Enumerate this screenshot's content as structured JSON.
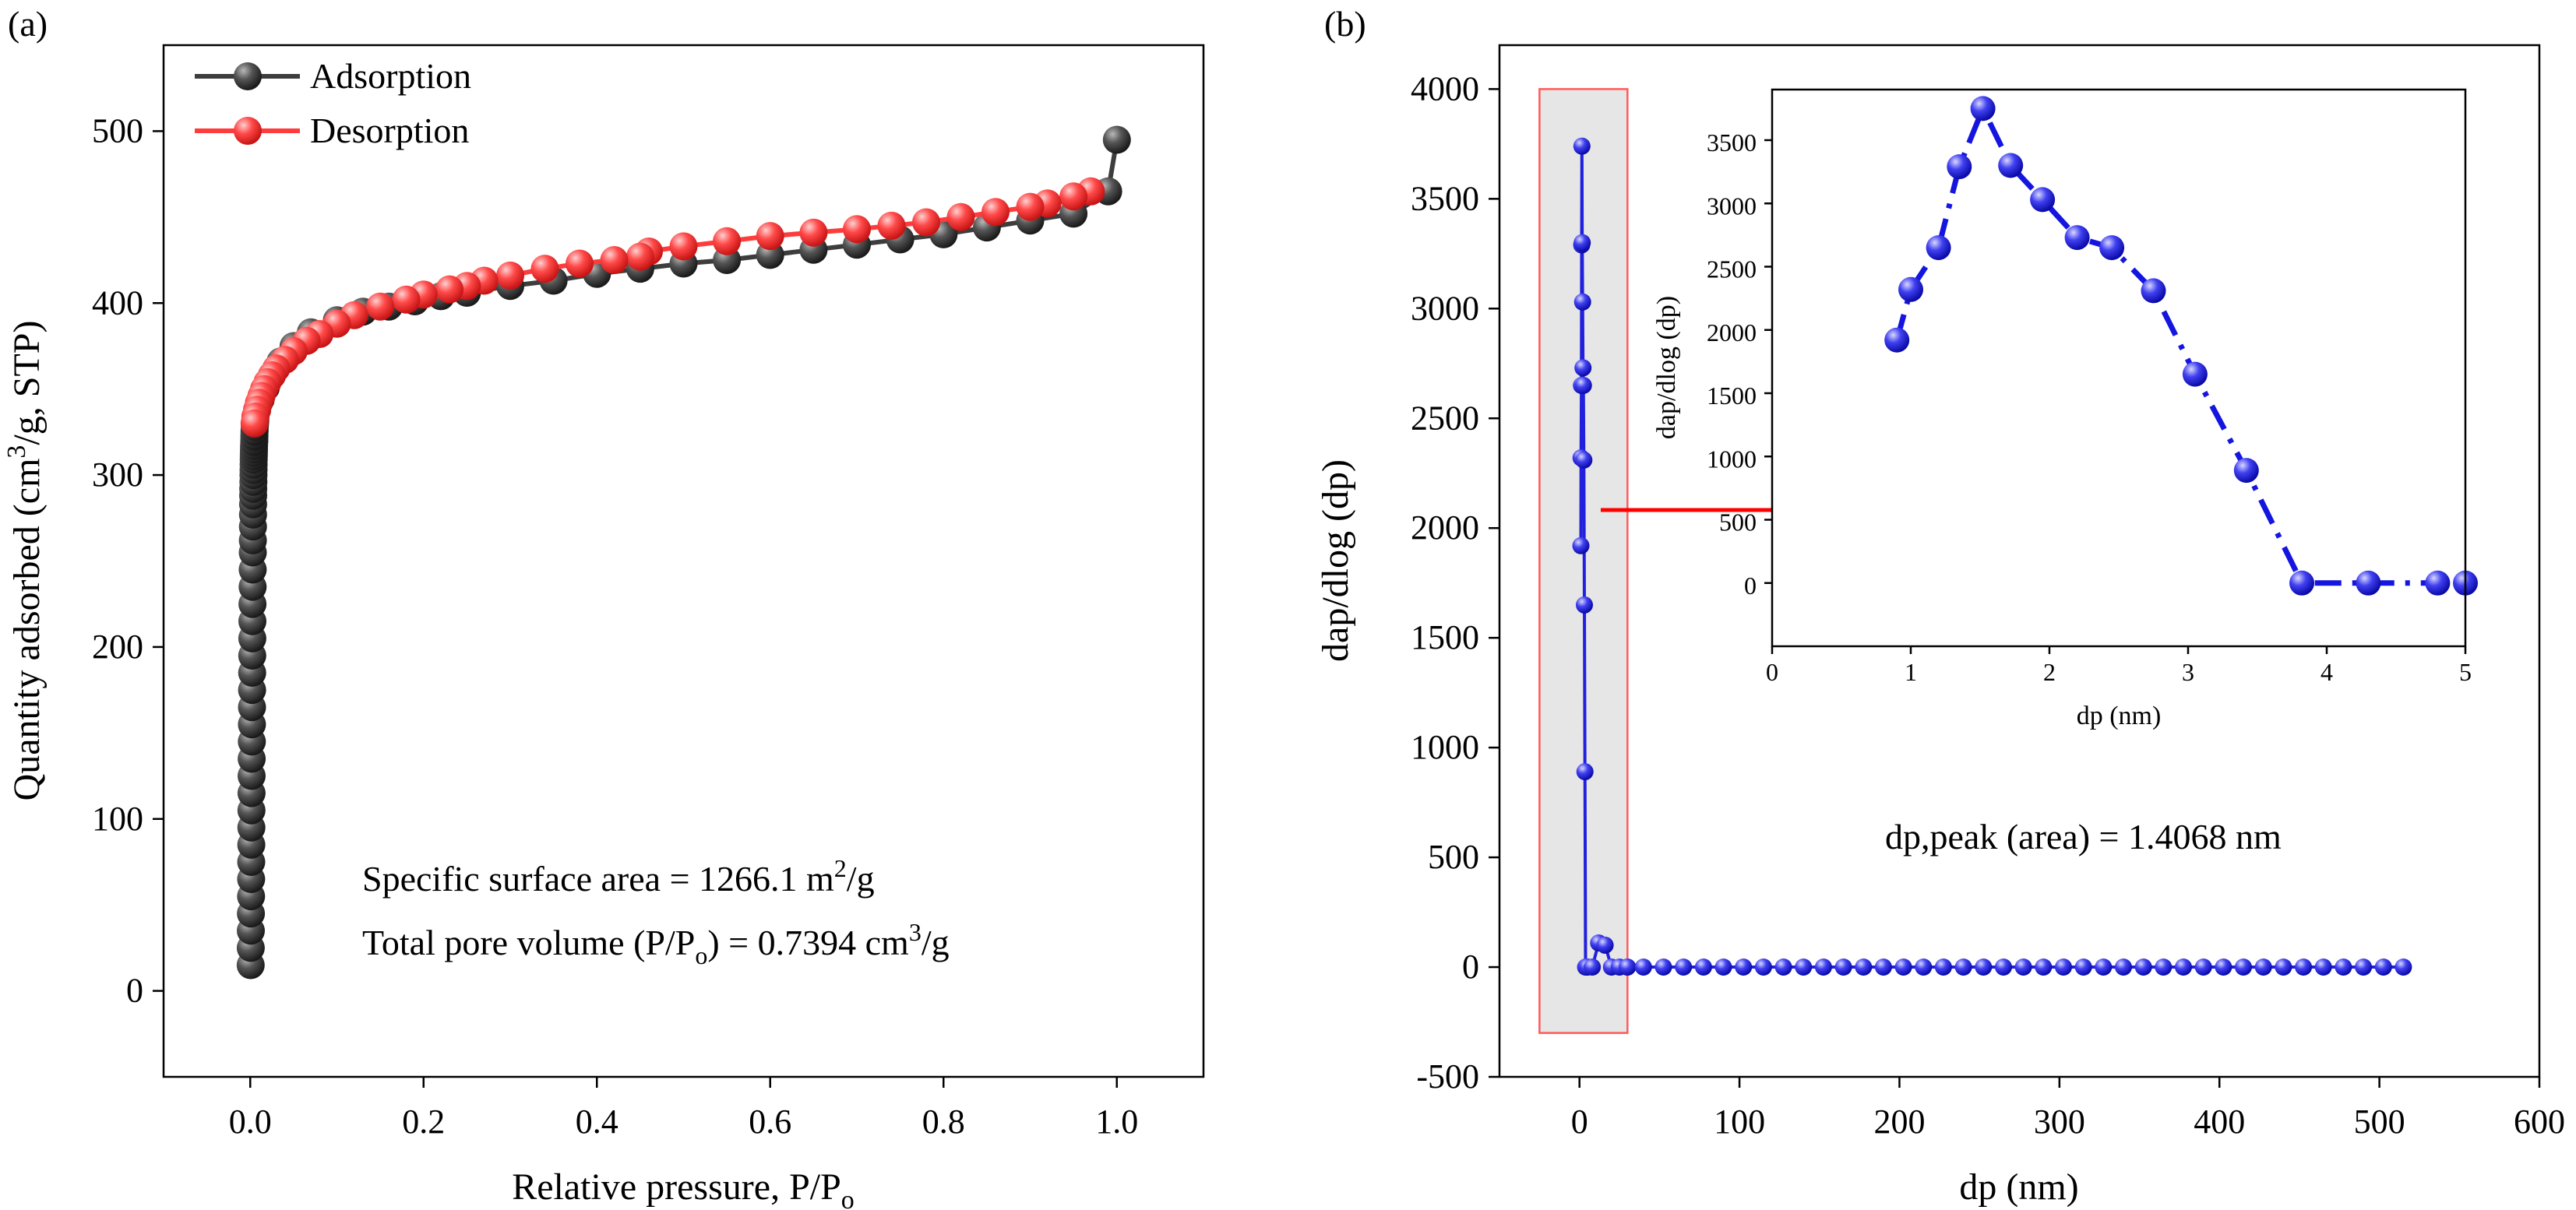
{
  "chart_data": [
    {
      "panel": "(a)",
      "type": "line",
      "xlabel": "Relative pressure, P/P",
      "xlabel_sub": "o",
      "ylabel_pre": "Quantity adsorbed (cm",
      "ylabel_sup": "3",
      "ylabel_post": "/g, STP)",
      "xlim": [
        -0.1,
        1.1
      ],
      "ylim": [
        -50,
        550
      ],
      "xticks": [
        0.0,
        0.2,
        0.4,
        0.6,
        0.8,
        1.0
      ],
      "xtick_labels": [
        "0.0",
        "0.2",
        "0.4",
        "0.6",
        "0.8",
        "1.0"
      ],
      "yticks": [
        0,
        100,
        200,
        300,
        400,
        500
      ],
      "ytick_labels": [
        "0",
        "100",
        "200",
        "300",
        "400",
        "500"
      ],
      "legend": {
        "position": "top-left",
        "entries": [
          "Adsorption",
          "Desorption"
        ]
      },
      "annotations": {
        "surface_pre": "Specific surface area = 1266.1 m",
        "surface_sup": "2",
        "surface_post": "/g",
        "volume_pre": "Total pore volume (P/P",
        "volume_sub": "o",
        "volume_mid": ") = 0.7394 cm",
        "volume_sup": "3",
        "volume_post": "/g"
      },
      "series": [
        {
          "name": "Adsorption",
          "color": "#3d3d3d",
          "x": [
            0.0005,
            0.0006,
            0.0007,
            0.0008,
            0.0009,
            0.001,
            0.0011,
            0.0012,
            0.0013,
            0.0014,
            0.0015,
            0.0016,
            0.0017,
            0.0018,
            0.0019,
            0.002,
            0.0021,
            0.0022,
            0.0023,
            0.0024,
            0.0025,
            0.0026,
            0.0027,
            0.0028,
            0.0029,
            0.003,
            0.0031,
            0.0032,
            0.0033,
            0.0034,
            0.0035,
            0.0036,
            0.0037,
            0.0038,
            0.0039,
            0.004,
            0.0041,
            0.0042,
            0.0043,
            0.0044,
            0.0045,
            0.0046,
            0.0047,
            0.0048,
            0.0049,
            0.005,
            0.0052,
            0.0055,
            0.0058,
            0.006,
            0.008,
            0.012,
            0.018,
            0.025,
            0.035,
            0.05,
            0.07,
            0.1,
            0.13,
            0.16,
            0.19,
            0.22,
            0.25,
            0.3,
            0.35,
            0.4,
            0.45,
            0.5,
            0.55,
            0.6,
            0.65,
            0.7,
            0.75,
            0.8,
            0.85,
            0.9,
            0.95,
            0.99,
            1.0
          ],
          "y": [
            15,
            25,
            35,
            45,
            55,
            65,
            75,
            85,
            95,
            105,
            115,
            125,
            135,
            145,
            155,
            165,
            175,
            185,
            195,
            205,
            215,
            225,
            235,
            245,
            255,
            262,
            270,
            277,
            283,
            288,
            292,
            296,
            300,
            303,
            306,
            309,
            311,
            313,
            315,
            317,
            319,
            320,
            322,
            323,
            325,
            326,
            328,
            330,
            332,
            334,
            338,
            344,
            351,
            358,
            366,
            375,
            383,
            390,
            395,
            398,
            401,
            404,
            406,
            410,
            413,
            417,
            420,
            423,
            425,
            428,
            431,
            434,
            437,
            440,
            444,
            448,
            452,
            465,
            495
          ]
        },
        {
          "name": "Desorption",
          "color": "#ff3b3b",
          "x": [
            0.97,
            0.95,
            0.92,
            0.9,
            0.86,
            0.82,
            0.78,
            0.74,
            0.7,
            0.65,
            0.6,
            0.55,
            0.5,
            0.46,
            0.45,
            0.42,
            0.38,
            0.34,
            0.3,
            0.27,
            0.25,
            0.23,
            0.2,
            0.18,
            0.15,
            0.12,
            0.1,
            0.08,
            0.065,
            0.05,
            0.04,
            0.03,
            0.025,
            0.02,
            0.016,
            0.013,
            0.01,
            0.008,
            0.006,
            0.005
          ],
          "y": [
            465,
            462,
            458,
            456,
            453,
            450,
            447,
            445,
            443,
            441,
            439,
            436,
            433,
            430,
            427,
            425,
            423,
            420,
            416,
            413,
            410,
            408,
            405,
            402,
            398,
            393,
            388,
            382,
            378,
            372,
            367,
            362,
            358,
            354,
            350,
            346,
            342,
            338,
            334,
            330
          ]
        }
      ]
    },
    {
      "panel": "(b)",
      "type": "line",
      "xlabel": "dp (nm)",
      "ylabel": "dap/dlog (dp)",
      "xlim": [
        -50,
        600
      ],
      "ylim": [
        -500,
        4200
      ],
      "xticks": [
        0,
        100,
        200,
        300,
        400,
        500,
        600
      ],
      "xtick_labels": [
        "0",
        "100",
        "200",
        "300",
        "400",
        "500",
        "600"
      ],
      "yticks": [
        -500,
        0,
        500,
        1000,
        1500,
        2000,
        2500,
        3000,
        3500,
        4000
      ],
      "ytick_labels": [
        "-500",
        "0",
        "500",
        "1000",
        "1500",
        "2000",
        "2500",
        "3000",
        "3500",
        "4000"
      ],
      "annotation": "dp,peak (area) = 1.4068 nm",
      "highlight_region": {
        "x": [
          -25,
          30
        ],
        "y": [
          -300,
          4000
        ]
      },
      "series": [
        {
          "name": "dap/dlog (dp)",
          "color": "#2020dd",
          "x": [
            0.9,
            1.0,
            1.2,
            1.35,
            1.5,
            1.7,
            1.95,
            2.2,
            2.45,
            2.75,
            3.05,
            3.4,
            3.8,
            4.3,
            4.8,
            5,
            8,
            12,
            16,
            20,
            25,
            30
          ],
          "y": [
            1920,
            2320,
            2650,
            3290,
            3740,
            3300,
            3030,
            2730,
            2650,
            2310,
            1650,
            890,
            0,
            0,
            0,
            0,
            0,
            110,
            100,
            0,
            0,
            0
          ]
        }
      ],
      "inset": {
        "xlabel": "dp (nm)",
        "ylabel": "dap/dlog (dp)",
        "xlim": [
          0,
          5
        ],
        "ylim": [
          -500,
          3900
        ],
        "xticks": [
          0,
          1,
          2,
          3,
          4,
          5
        ],
        "xtick_labels": [
          "0",
          "1",
          "2",
          "3",
          "4",
          "5"
        ],
        "yticks": [
          0,
          500,
          1000,
          1500,
          2000,
          2500,
          3000,
          3500
        ],
        "ytick_labels": [
          "0",
          "500",
          "1000",
          "1500",
          "2000",
          "2500",
          "3000",
          "3500"
        ],
        "series": [
          {
            "name": "inset",
            "color": "#1515e0",
            "x": [
              0.9,
              1.0,
              1.2,
              1.35,
              1.52,
              1.72,
              1.95,
              2.2,
              2.45,
              2.75,
              3.05,
              3.42,
              3.82,
              4.3,
              4.8,
              5.0
            ],
            "y": [
              1920,
              2320,
              2650,
              3290,
              3750,
              3300,
              3030,
              2730,
              2650,
              2310,
              1650,
              890,
              0,
              0,
              0,
              0
            ]
          }
        ]
      }
    }
  ]
}
